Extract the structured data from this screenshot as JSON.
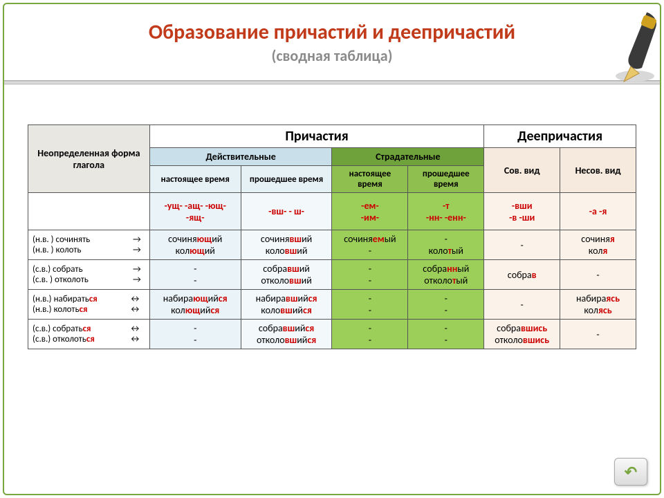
{
  "title": "Образование причастий и деепричастий",
  "subtitle": "(сводная таблица)",
  "headers": {
    "col0": "Неопределенная форма глагола",
    "participles": "Причастия",
    "gerunds": "Деепричастия",
    "active": "Действительные",
    "passive": "Страдательные",
    "present": "настоящее время",
    "past": "прошедшее время",
    "sov": "Сов. вид",
    "nesov": "Несов. вид"
  },
  "suffix": {
    "c1": "-ущ-   -ащ-  -ющ-   -ящ-",
    "c2": "-вш-     - ш-",
    "c3": "-ем-\n-им-",
    "c4": "-т\n-нн-   -енн-",
    "c5": "-вши\n-в  -ши",
    "c6": "-а      -я"
  },
  "rows": [
    {
      "label_html": "(н.в. )  сочинять<span class='arrow'>→</span><br>(н.в. )  колоть<span class='arrow'>→</span>",
      "c1": "сочиня<span class='red'>ющ</span>ий<br>кол<span class='red'>ющ</span>ий",
      "c2": "сочиня<span class='red'>вш</span>ий<br>коло<span class='red'>вш</span>ий",
      "c3": "сочиня<span class='red'>ем</span>ый<br>-",
      "c4": "-<br>коло<span class='red'>т</span>ый",
      "c5": "-",
      "c6": "сочиня<span class='red'>я</span><br>кол<span class='red'>я</span>"
    },
    {
      "label_html": "(с.в.)   собрать<span class='arrow'>→</span><br>(с.в. )  отколоть<span class='arrow'>→</span>",
      "c1": "-<br>-",
      "c2": "собра<span class='red'>вш</span>ий<br>отколо<span class='red'>вш</span>ий",
      "c3": "-<br>-",
      "c4": "собра<span class='red'>нн</span>ый<br>отколо<span class='red'>т</span>ый",
      "c5": "собра<span class='red'>в</span>",
      "c6": "-"
    },
    {
      "label_html": "(н.в.)  набирать<span class='red'>ся</span><span class='arrow'>↔</span><br>(н.в.)  колоть<span class='red'>ся</span><span class='arrow'>↔</span>",
      "c1": "набира<span class='red'>ющ</span>ий<span class='red'>ся</span><br>кол<span class='red'>ющ</span>ий<span class='red'>ся</span>",
      "c2": "набира<span class='red'>вш</span>ий<span class='red'>ся</span><br>коло<span class='red'>вш</span>ий<span class='red'>ся</span>",
      "c3": "-<br>-",
      "c4": "-<br>-",
      "c5": "-",
      "c6": "набира<span class='red'>я</span><span class='red'>сь</span><br>кол<span class='red'>я</span><span class='red'>сь</span>"
    },
    {
      "label_html": "(с.в.)  собрать<span class='red'>ся</span><span class='arrow'>↔</span><br>(с.в.)  отколоть<span class='red'>ся</span><span class='arrow'>↔</span>",
      "c1": "-<br>-",
      "c2": "собра<span class='red'>вш</span>ий<span class='red'>ся</span><br>отколо<span class='red'>вш</span>ий<span class='red'>ся</span>",
      "c3": "-<br>-",
      "c4": "-<br>-",
      "c5": "собра<span class='red'>вши</span><span class='red'>сь</span><br>отколо<span class='red'>вши</span><span class='red'>сь</span>",
      "c6": "-"
    }
  ],
  "colors": {
    "title": "#c13a1a",
    "frame": "#7aa640",
    "red": "#cc0000",
    "blue_hdr": "#c9e0eb",
    "green_hdr": "#6fa23a",
    "peach": "#f6e9dd"
  },
  "back_icon": "↶"
}
